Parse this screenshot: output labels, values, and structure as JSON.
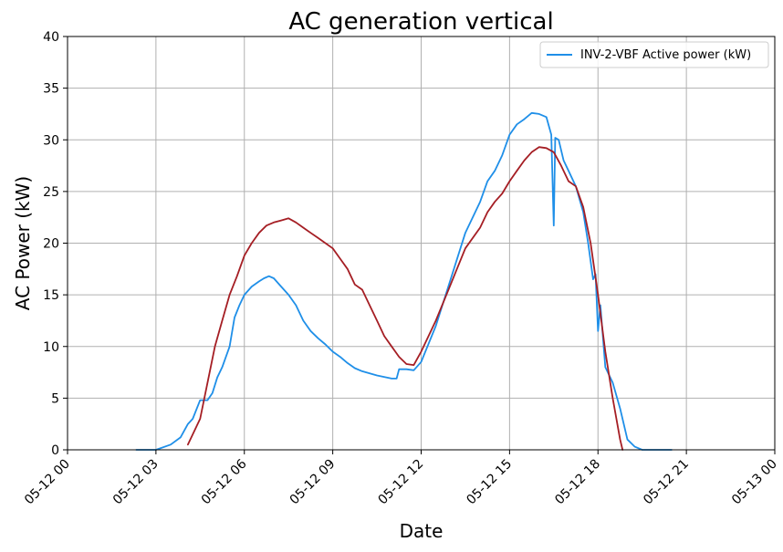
{
  "chart_data": {
    "type": "line",
    "title": "AC generation vertical",
    "xlabel": "Date",
    "ylabel": "AC Power (kW)",
    "xlim": [
      "05-12 00:00",
      "05-13 00:00"
    ],
    "ylim": [
      0,
      40
    ],
    "x_ticks": [
      "05-12 00",
      "05-12 03",
      "05-12 06",
      "05-12 09",
      "05-12 12",
      "05-12 15",
      "05-12 18",
      "05-12 21",
      "05-13 00"
    ],
    "y_ticks": [
      "0",
      "5",
      "10",
      "15",
      "20",
      "25",
      "30",
      "35",
      "40"
    ],
    "grid": true,
    "legend_position": "top-right",
    "series": [
      {
        "name": "INV-2-VBF Active power (kW)",
        "color": "#1f8fe8",
        "x": [
          "05-12 02:20",
          "05-12 03:00",
          "05-12 03:30",
          "05-12 03:50",
          "05-12 04:05",
          "05-12 04:15",
          "05-12 04:30",
          "05-12 04:45",
          "05-12 04:55",
          "05-12 05:05",
          "05-12 05:15",
          "05-12 05:30",
          "05-12 05:40",
          "05-12 05:50",
          "05-12 06:00",
          "05-12 06:15",
          "05-12 06:30",
          "05-12 06:40",
          "05-12 06:50",
          "05-12 07:00",
          "05-12 07:15",
          "05-12 07:30",
          "05-12 07:45",
          "05-12 08:00",
          "05-12 08:15",
          "05-12 08:30",
          "05-12 08:45",
          "05-12 09:00",
          "05-12 09:15",
          "05-12 09:30",
          "05-12 09:45",
          "05-12 10:00",
          "05-12 10:30",
          "05-12 11:00",
          "05-12 11:10",
          "05-12 11:15",
          "05-12 11:30",
          "05-12 11:45",
          "05-12 12:00",
          "05-12 12:30",
          "05-12 13:00",
          "05-12 13:30",
          "05-12 14:00",
          "05-12 14:15",
          "05-12 14:30",
          "05-12 14:45",
          "05-12 15:00",
          "05-12 15:15",
          "05-12 15:30",
          "05-12 15:45",
          "05-12 16:00",
          "05-12 16:15",
          "05-12 16:25",
          "05-12 16:30",
          "05-12 16:33",
          "05-12 16:40",
          "05-12 16:50",
          "05-12 17:00",
          "05-12 17:15",
          "05-12 17:30",
          "05-12 17:40",
          "05-12 17:50",
          "05-12 17:55",
          "05-12 18:00",
          "05-12 18:05",
          "05-12 18:10",
          "05-12 18:15",
          "05-12 18:30",
          "05-12 18:45",
          "05-12 19:00",
          "05-12 19:15",
          "05-12 19:30",
          "05-12 20:00",
          "05-12 20:30"
        ],
        "values": [
          0.0,
          0.0,
          0.5,
          1.2,
          2.5,
          3.0,
          4.8,
          4.8,
          5.5,
          7.0,
          8.0,
          10.0,
          12.8,
          14.0,
          15.0,
          15.8,
          16.3,
          16.6,
          16.8,
          16.6,
          15.8,
          15.0,
          14.0,
          12.5,
          11.5,
          10.8,
          10.2,
          9.5,
          9.0,
          8.4,
          7.9,
          7.6,
          7.2,
          6.9,
          6.9,
          7.8,
          7.8,
          7.7,
          8.5,
          12.0,
          16.5,
          21.0,
          24.0,
          26.0,
          27.0,
          28.5,
          30.5,
          31.5,
          32.0,
          32.6,
          32.5,
          32.2,
          30.5,
          21.7,
          30.2,
          30.0,
          28.0,
          27.0,
          25.5,
          23.0,
          20.0,
          16.5,
          17.0,
          11.5,
          14.0,
          11.0,
          8.0,
          6.5,
          4.0,
          1.0,
          0.3,
          0.0,
          0.0,
          0.0
        ]
      },
      {
        "name": "",
        "color": "#a51e24",
        "x": [
          "05-12 04:05",
          "05-12 04:30",
          "05-12 04:45",
          "05-12 05:00",
          "05-12 05:15",
          "05-12 05:30",
          "05-12 05:45",
          "05-12 06:00",
          "05-12 06:15",
          "05-12 06:30",
          "05-12 06:45",
          "05-12 07:00",
          "05-12 07:15",
          "05-12 07:30",
          "05-12 07:45",
          "05-12 08:00",
          "05-12 08:15",
          "05-12 08:30",
          "05-12 08:45",
          "05-12 09:00",
          "05-12 09:15",
          "05-12 09:30",
          "05-12 09:45",
          "05-12 10:00",
          "05-12 10:15",
          "05-12 10:30",
          "05-12 10:45",
          "05-12 11:00",
          "05-12 11:15",
          "05-12 11:30",
          "05-12 11:45",
          "05-12 12:00",
          "05-12 12:30",
          "05-12 13:00",
          "05-12 13:30",
          "05-12 14:00",
          "05-12 14:15",
          "05-12 14:30",
          "05-12 14:45",
          "05-12 15:00",
          "05-12 15:15",
          "05-12 15:30",
          "05-12 15:45",
          "05-12 16:00",
          "05-12 16:15",
          "05-12 16:30",
          "05-12 16:45",
          "05-12 17:00",
          "05-12 17:15",
          "05-12 17:30",
          "05-12 17:45",
          "05-12 18:00",
          "05-12 18:15",
          "05-12 18:30",
          "05-12 18:45",
          "05-12 18:50"
        ],
        "values": [
          0.5,
          3.0,
          6.5,
          10.0,
          12.5,
          15.0,
          16.8,
          18.8,
          20.0,
          21.0,
          21.7,
          22.0,
          22.2,
          22.4,
          22.0,
          21.5,
          21.0,
          20.5,
          20.0,
          19.5,
          18.5,
          17.5,
          16.0,
          15.5,
          14.0,
          12.5,
          11.0,
          10.0,
          9.0,
          8.3,
          8.2,
          9.5,
          12.5,
          16.0,
          19.5,
          21.5,
          23.0,
          24.0,
          24.8,
          26.0,
          27.0,
          28.0,
          28.8,
          29.3,
          29.2,
          28.8,
          27.5,
          26.0,
          25.5,
          23.5,
          20.0,
          15.0,
          9.5,
          5.0,
          1.0,
          0.0
        ]
      }
    ]
  }
}
